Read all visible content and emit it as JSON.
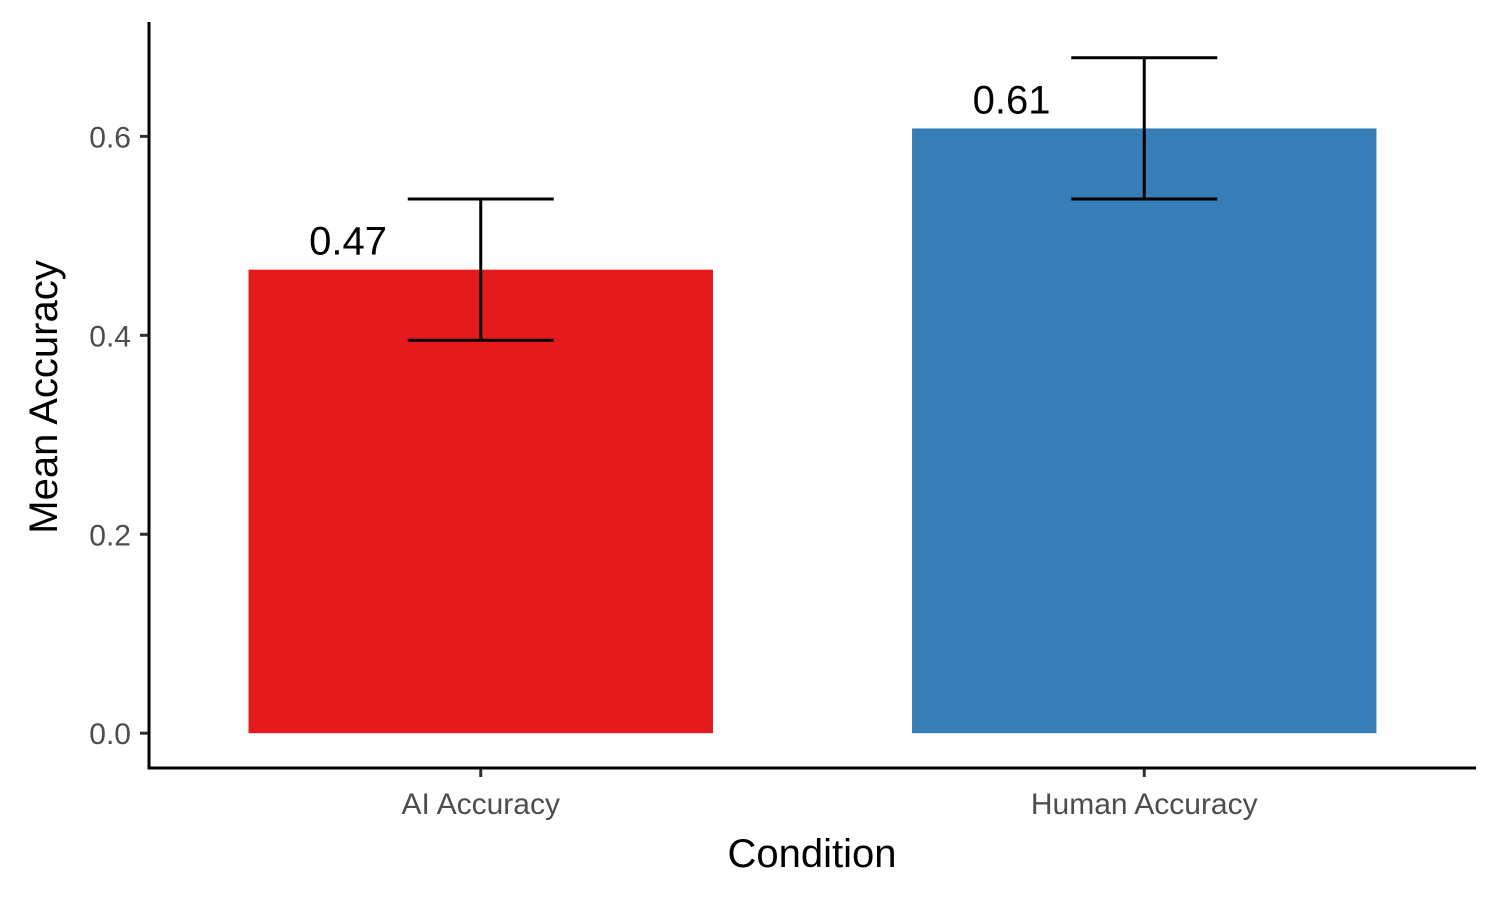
{
  "chart_data": {
    "type": "bar",
    "title": "",
    "xlabel": "Condition",
    "ylabel": "Mean Accuracy",
    "categories": [
      "AI Accuracy",
      "Human Accuracy"
    ],
    "values": [
      0.466,
      0.608
    ],
    "value_labels": [
      "0.47",
      "0.61"
    ],
    "error_bars": [
      {
        "lower": 0.395,
        "upper": 0.537
      },
      {
        "lower": 0.537,
        "upper": 0.679
      }
    ],
    "colors": [
      "#E41A1C",
      "#377EB8"
    ],
    "yticks": [
      0.0,
      0.2,
      0.4,
      0.6
    ],
    "ytick_labels": [
      "0.0",
      "0.2",
      "0.4",
      "0.6"
    ],
    "ylim": [
      -0.035,
      0.715
    ],
    "grid": false,
    "legend": "none"
  }
}
